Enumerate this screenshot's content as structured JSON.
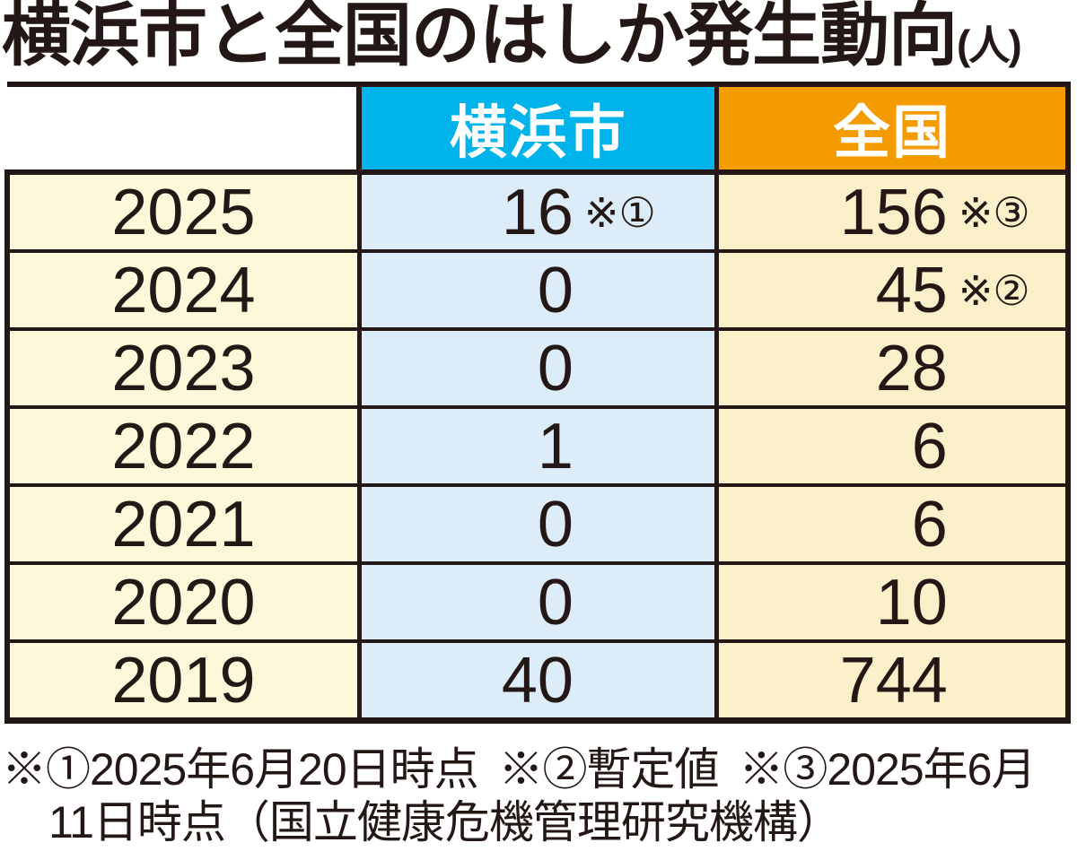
{
  "title": {
    "text": "横浜市と全国のはしか発生動向",
    "unit": "(人)"
  },
  "colors": {
    "ink": "#231815",
    "header_yokohama_bg": "#00b3eb",
    "header_national_bg": "#f49b00",
    "header_text": "#ffffff",
    "year_col_bg": "#fdf8d9",
    "yokohama_col_bg": "#dcedf9",
    "national_col_bg": "#fcf0cb"
  },
  "table": {
    "headers": {
      "yokohama": "横浜市",
      "national": "全国"
    },
    "rows": [
      {
        "year": "2025",
        "yokohama": "16",
        "yokohama_note": "※①",
        "national": "156",
        "national_note": "※③"
      },
      {
        "year": "2024",
        "yokohama": "0",
        "yokohama_note": "",
        "national": "45",
        "national_note": "※②"
      },
      {
        "year": "2023",
        "yokohama": "0",
        "yokohama_note": "",
        "national": "28",
        "national_note": ""
      },
      {
        "year": "2022",
        "yokohama": "1",
        "yokohama_note": "",
        "national": "6",
        "national_note": ""
      },
      {
        "year": "2021",
        "yokohama": "0",
        "yokohama_note": "",
        "national": "6",
        "national_note": ""
      },
      {
        "year": "2020",
        "yokohama": "0",
        "yokohama_note": "",
        "national": "10",
        "national_note": ""
      },
      {
        "year": "2019",
        "yokohama": "40",
        "yokohama_note": "",
        "national": "744",
        "national_note": ""
      }
    ]
  },
  "footnotes": {
    "line1": "※①2025年6月20日時点 ※②暫定値 ※③2025年6月",
    "line2": "11日時点（国立健康危機管理研究機構）"
  },
  "chart_data": {
    "type": "table",
    "title": "横浜市と全国のはしか発生動向",
    "unit": "人",
    "categories": [
      "2025",
      "2024",
      "2023",
      "2022",
      "2021",
      "2020",
      "2019"
    ],
    "series": [
      {
        "name": "横浜市",
        "values": [
          16,
          0,
          0,
          1,
          0,
          0,
          40
        ]
      },
      {
        "name": "全国",
        "values": [
          156,
          45,
          28,
          6,
          6,
          10,
          744
        ]
      }
    ],
    "annotations": [
      {
        "ref": "※①",
        "applies_to": "2025 横浜市",
        "text": "2025年6月20日時点"
      },
      {
        "ref": "※②",
        "applies_to": "2024 全国",
        "text": "暫定値"
      },
      {
        "ref": "※③",
        "applies_to": "2025 全国",
        "text": "2025年6月11日時点（国立健康危機管理研究機構）"
      }
    ]
  }
}
